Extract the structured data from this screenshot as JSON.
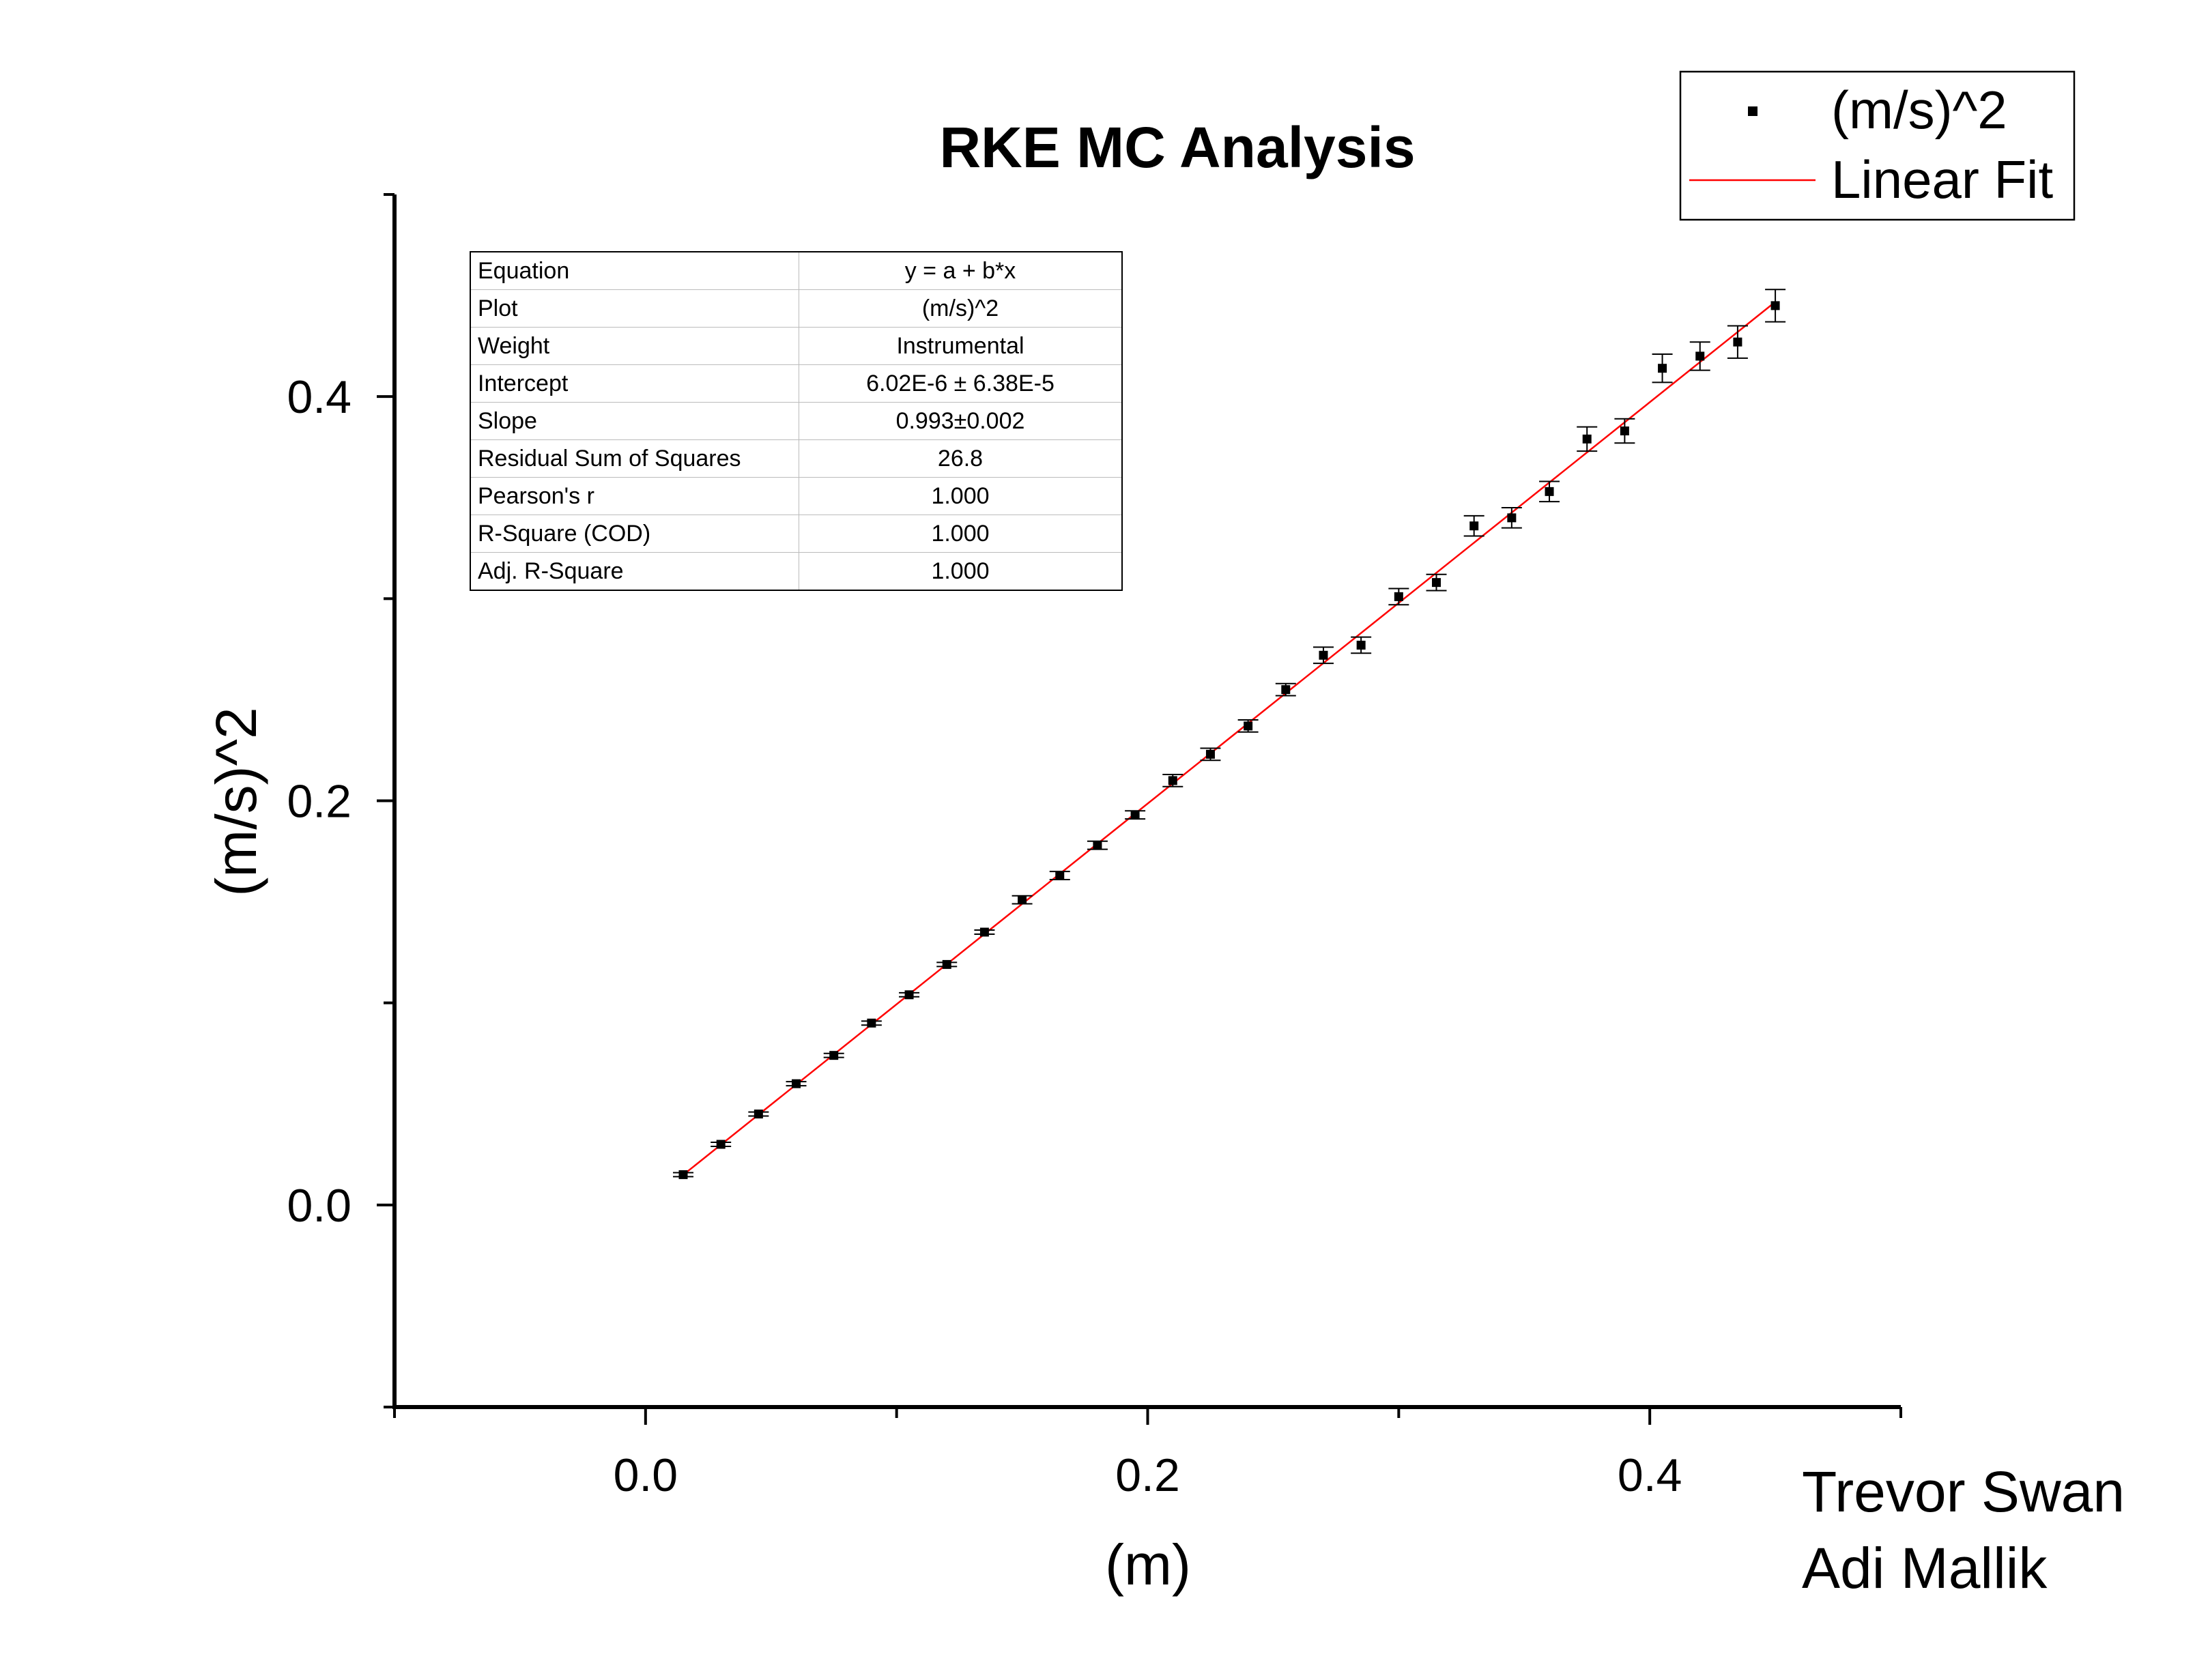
{
  "chart_data": {
    "type": "scatter",
    "title": "RKE MC Analysis",
    "xlabel": "(m)",
    "ylabel": "(m/s)^2",
    "xlim": [
      -0.1,
      0.5
    ],
    "ylim": [
      -0.1,
      0.5
    ],
    "x_ticks": [
      "0.0",
      "0.2",
      "0.4"
    ],
    "y_ticks": [
      "0.0",
      "0.2",
      "0.4"
    ],
    "series": [
      {
        "name": "(m/s)^2",
        "color": "#000000",
        "marker": "square",
        "x": [
          0.015,
          0.03,
          0.045,
          0.06,
          0.075,
          0.09,
          0.105,
          0.12,
          0.135,
          0.15,
          0.165,
          0.18,
          0.195,
          0.21,
          0.225,
          0.24,
          0.255,
          0.27,
          0.285,
          0.3,
          0.315,
          0.33,
          0.345,
          0.36,
          0.375,
          0.39,
          0.405,
          0.42,
          0.435,
          0.45
        ],
        "y": [
          0.015,
          0.03,
          0.045,
          0.06,
          0.074,
          0.09,
          0.104,
          0.119,
          0.135,
          0.151,
          0.163,
          0.178,
          0.193,
          0.21,
          0.223,
          0.237,
          0.255,
          0.272,
          0.277,
          0.301,
          0.308,
          0.336,
          0.34,
          0.353,
          0.379,
          0.383,
          0.414,
          0.42,
          0.427,
          0.445
        ],
        "y_err": [
          0.001,
          0.001,
          0.001,
          0.001,
          0.001,
          0.001,
          0.001,
          0.001,
          0.001,
          0.002,
          0.002,
          0.002,
          0.002,
          0.003,
          0.003,
          0.003,
          0.003,
          0.004,
          0.004,
          0.004,
          0.004,
          0.005,
          0.005,
          0.005,
          0.006,
          0.006,
          0.007,
          0.007,
          0.008,
          0.008
        ]
      },
      {
        "name": "Linear Fit",
        "color": "#ff0000",
        "type": "line",
        "intercept": 6.02e-06,
        "slope": 0.993,
        "x_range": [
          0.015,
          0.45
        ]
      }
    ],
    "legend_position": "top-right",
    "grid": false,
    "fit_table": [
      {
        "key": "Equation",
        "value": "y = a + b*x"
      },
      {
        "key": "Plot",
        "value": "(m/s)^2"
      },
      {
        "key": "Weight",
        "value": "Instrumental"
      },
      {
        "key": "Intercept",
        "value": "6.02E-6 ± 6.38E-5"
      },
      {
        "key": "Slope",
        "value": "0.993±0.002"
      },
      {
        "key": "Residual Sum of Squares",
        "value": "26.8"
      },
      {
        "key": "Pearson's r",
        "value": "1.000"
      },
      {
        "key": "R-Square (COD)",
        "value": "1.000"
      },
      {
        "key": "Adj. R-Square",
        "value": "1.000"
      }
    ]
  },
  "authors": [
    "Trevor Swan",
    "Adi Mallik"
  ]
}
